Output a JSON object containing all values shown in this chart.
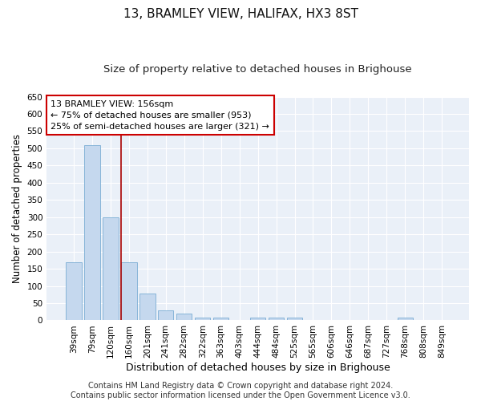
{
  "title": "13, BRAMLEY VIEW, HALIFAX, HX3 8ST",
  "subtitle": "Size of property relative to detached houses in Brighouse",
  "xlabel": "Distribution of detached houses by size in Brighouse",
  "ylabel": "Number of detached properties",
  "categories": [
    "39sqm",
    "79sqm",
    "120sqm",
    "160sqm",
    "201sqm",
    "241sqm",
    "282sqm",
    "322sqm",
    "363sqm",
    "403sqm",
    "444sqm",
    "484sqm",
    "525sqm",
    "565sqm",
    "606sqm",
    "646sqm",
    "687sqm",
    "727sqm",
    "768sqm",
    "808sqm",
    "849sqm"
  ],
  "values": [
    168,
    510,
    300,
    168,
    78,
    30,
    20,
    8,
    8,
    0,
    8,
    8,
    8,
    0,
    0,
    0,
    0,
    0,
    8,
    0,
    0
  ],
  "bar_color": "#c5d8ee",
  "bar_edgecolor": "#7aadd4",
  "background_color": "#eaf0f8",
  "grid_color": "#ffffff",
  "vline_x": 2.57,
  "vline_color": "#aa0000",
  "annotation_text": "13 BRAMLEY VIEW: 156sqm\n← 75% of detached houses are smaller (953)\n25% of semi-detached houses are larger (321) →",
  "annotation_box_color": "#ffffff",
  "annotation_box_edgecolor": "#cc0000",
  "ylim": [
    0,
    650
  ],
  "yticks": [
    0,
    50,
    100,
    150,
    200,
    250,
    300,
    350,
    400,
    450,
    500,
    550,
    600,
    650
  ],
  "footer_line1": "Contains HM Land Registry data © Crown copyright and database right 2024.",
  "footer_line2": "Contains public sector information licensed under the Open Government Licence v3.0.",
  "title_fontsize": 11,
  "subtitle_fontsize": 9.5,
  "xlabel_fontsize": 9,
  "ylabel_fontsize": 8.5,
  "tick_fontsize": 7.5,
  "annotation_fontsize": 8,
  "footer_fontsize": 7
}
